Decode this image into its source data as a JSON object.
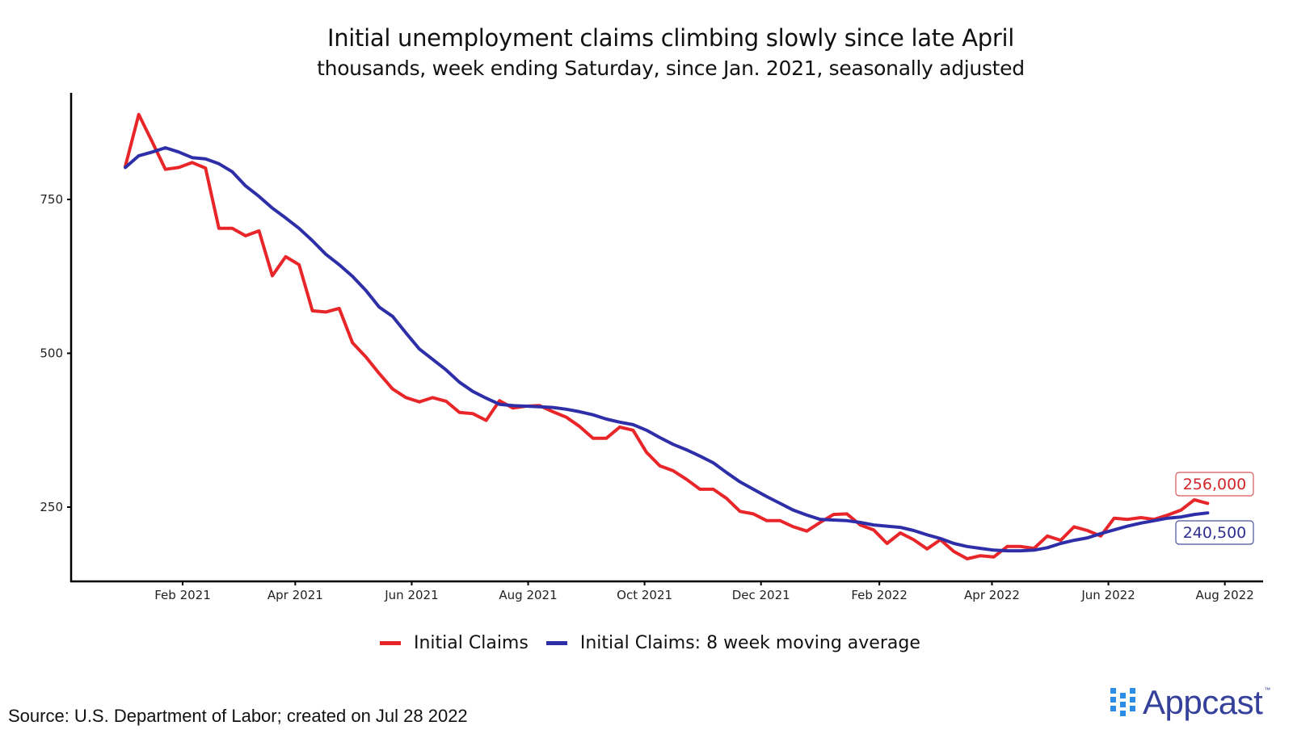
{
  "chart_data": {
    "type": "line",
    "title": "Initial unemployment claims climbing slowly since late April",
    "subtitle": "thousands, week ending Saturday, since Jan. 2021, seasonally adjusted",
    "xlabel": "",
    "ylabel": "",
    "x_start": "2021-01-02",
    "x_step_days": 7,
    "ylim": [
      130,
      930
    ],
    "y_ticks": [
      250,
      500,
      750
    ],
    "y_tick_labels": [
      "250",
      "500",
      "750"
    ],
    "x_ticks": [
      "2021-02-01",
      "2021-04-01",
      "2021-06-01",
      "2021-08-01",
      "2021-10-01",
      "2021-12-01",
      "2022-02-01",
      "2022-04-01",
      "2022-06-01",
      "2022-08-01"
    ],
    "x_tick_labels": [
      "Feb 2021",
      "Apr 2021",
      "Jun 2021",
      "Aug 2021",
      "Oct 2021",
      "Dec 2021",
      "Feb 2022",
      "Apr 2022",
      "Jun 2022",
      "Aug 2022"
    ],
    "xlim": [
      "2020-12-18",
      "2022-08-18"
    ],
    "grid": false,
    "legend_position": "bottom",
    "series": [
      {
        "name": "Initial Claims",
        "color": "#e8262a",
        "values": [
          804,
          888,
          844,
          799,
          802,
          810,
          801,
          703,
          703,
          691,
          699,
          626,
          657,
          644,
          569,
          567,
          573,
          517,
          494,
          467,
          442,
          428,
          421,
          428,
          422,
          404,
          402,
          391,
          423,
          411,
          414,
          415,
          405,
          396,
          381,
          362,
          362,
          380,
          375,
          339,
          317,
          309,
          295,
          279,
          279,
          264,
          243,
          239,
          228,
          228,
          218,
          211,
          225,
          238,
          239,
          221,
          213,
          191,
          208,
          197,
          182,
          197,
          178,
          166,
          171,
          169,
          186,
          186,
          183,
          203,
          196,
          218,
          212,
          203,
          232,
          230,
          233,
          230,
          237,
          245,
          262,
          256
        ],
        "end_label": "256,000"
      },
      {
        "name": "Initial Claims: 8 week moving average",
        "color": "#2e2fa8",
        "values": [
          802,
          821,
          827,
          834,
          827,
          818,
          816,
          808,
          795,
          772,
          755,
          736,
          720,
          703,
          683,
          661,
          644,
          625,
          602,
          575,
          560,
          533,
          507,
          490,
          473,
          453,
          438,
          427,
          417,
          415,
          414,
          413,
          412,
          409,
          405,
          400,
          393,
          388,
          384,
          375,
          363,
          352,
          343,
          333,
          322,
          306,
          291,
          279,
          267,
          256,
          245,
          237,
          230,
          229,
          228,
          225,
          221,
          219,
          217,
          212,
          205,
          199,
          191,
          186,
          183,
          180,
          179,
          179,
          180,
          184,
          191,
          196,
          200,
          207,
          213,
          219,
          224,
          228,
          232,
          234,
          238,
          240.5
        ],
        "end_label": "240,500"
      }
    ]
  },
  "source": "Source: U.S. Department of Labor; created on Jul 28 2022",
  "brand": {
    "name": "Appcast",
    "trademark": "™"
  }
}
